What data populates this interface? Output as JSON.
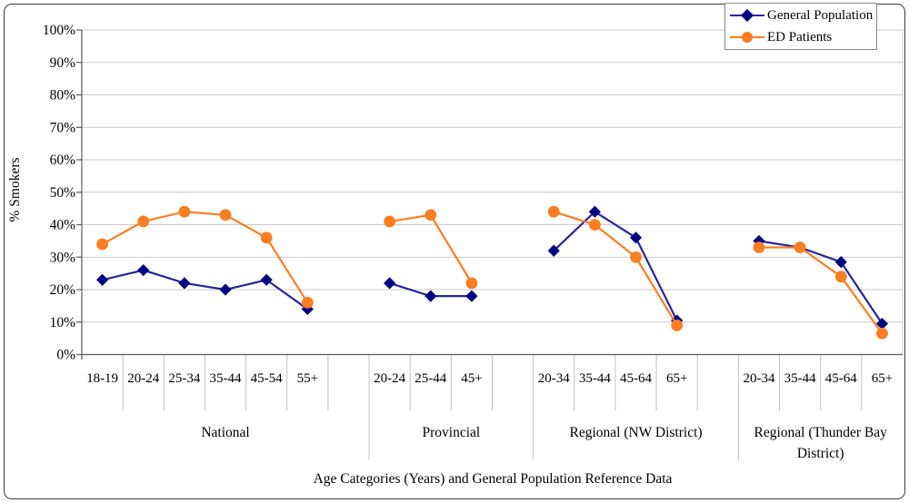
{
  "chart_data": {
    "type": "line",
    "title": "",
    "xlabel": "Age Categories (Years) and General Population Reference Data",
    "ylabel": "% Smokers",
    "ylim": [
      0,
      100
    ],
    "ytick_step": 10,
    "ytick_labels": [
      "0%",
      "10%",
      "20%",
      "30%",
      "40%",
      "50%",
      "60%",
      "70%",
      "80%",
      "90%",
      "100%"
    ],
    "grid": true,
    "legend_position": "top-right",
    "series_meta": [
      {
        "name": "General Population",
        "color": "#000080",
        "line_color": "#26269a",
        "marker": "diamond"
      },
      {
        "name": "ED Patients",
        "color": "#fd7d23",
        "line_color": "#fd7d23",
        "marker": "circle"
      }
    ],
    "groups": [
      {
        "label": "National",
        "categories": [
          "18-19",
          "20-24",
          "25-34",
          "35-44",
          "45-54",
          "55+"
        ],
        "series": [
          {
            "name": "General Population",
            "values": [
              23,
              26,
              22,
              20,
              23,
              14
            ]
          },
          {
            "name": "ED Patients",
            "values": [
              34,
              41,
              44,
              43,
              36,
              16
            ]
          }
        ]
      },
      {
        "label": "Provincial",
        "categories": [
          "20-24",
          "25-44",
          "45+"
        ],
        "series": [
          {
            "name": "General Population",
            "values": [
              22,
              18,
              18
            ]
          },
          {
            "name": "ED Patients",
            "values": [
              41,
              43,
              22
            ]
          }
        ]
      },
      {
        "label": "Regional (NW District)",
        "categories": [
          "20-34",
          "35-44",
          "45-64",
          "65+"
        ],
        "series": [
          {
            "name": "General Population",
            "values": [
              32,
              44,
              36,
              10.5
            ]
          },
          {
            "name": "ED Patients",
            "values": [
              44,
              40,
              30,
              9
            ]
          }
        ]
      },
      {
        "label": "Regional (Thunder Bay District)",
        "label_lines": [
          "Regional (Thunder Bay",
          "District)"
        ],
        "categories": [
          "20-34",
          "35-44",
          "45-64",
          "65+"
        ],
        "series": [
          {
            "name": "General Population",
            "values": [
              35,
              33,
              28.5,
              9.5
            ]
          },
          {
            "name": "ED Patients",
            "values": [
              33,
              33,
              24,
              6.5
            ]
          }
        ]
      }
    ],
    "colors": {
      "gridline": "#c9c9c9",
      "separator": "#c2c2c2",
      "axis": "#595959",
      "text": "#000000"
    }
  }
}
